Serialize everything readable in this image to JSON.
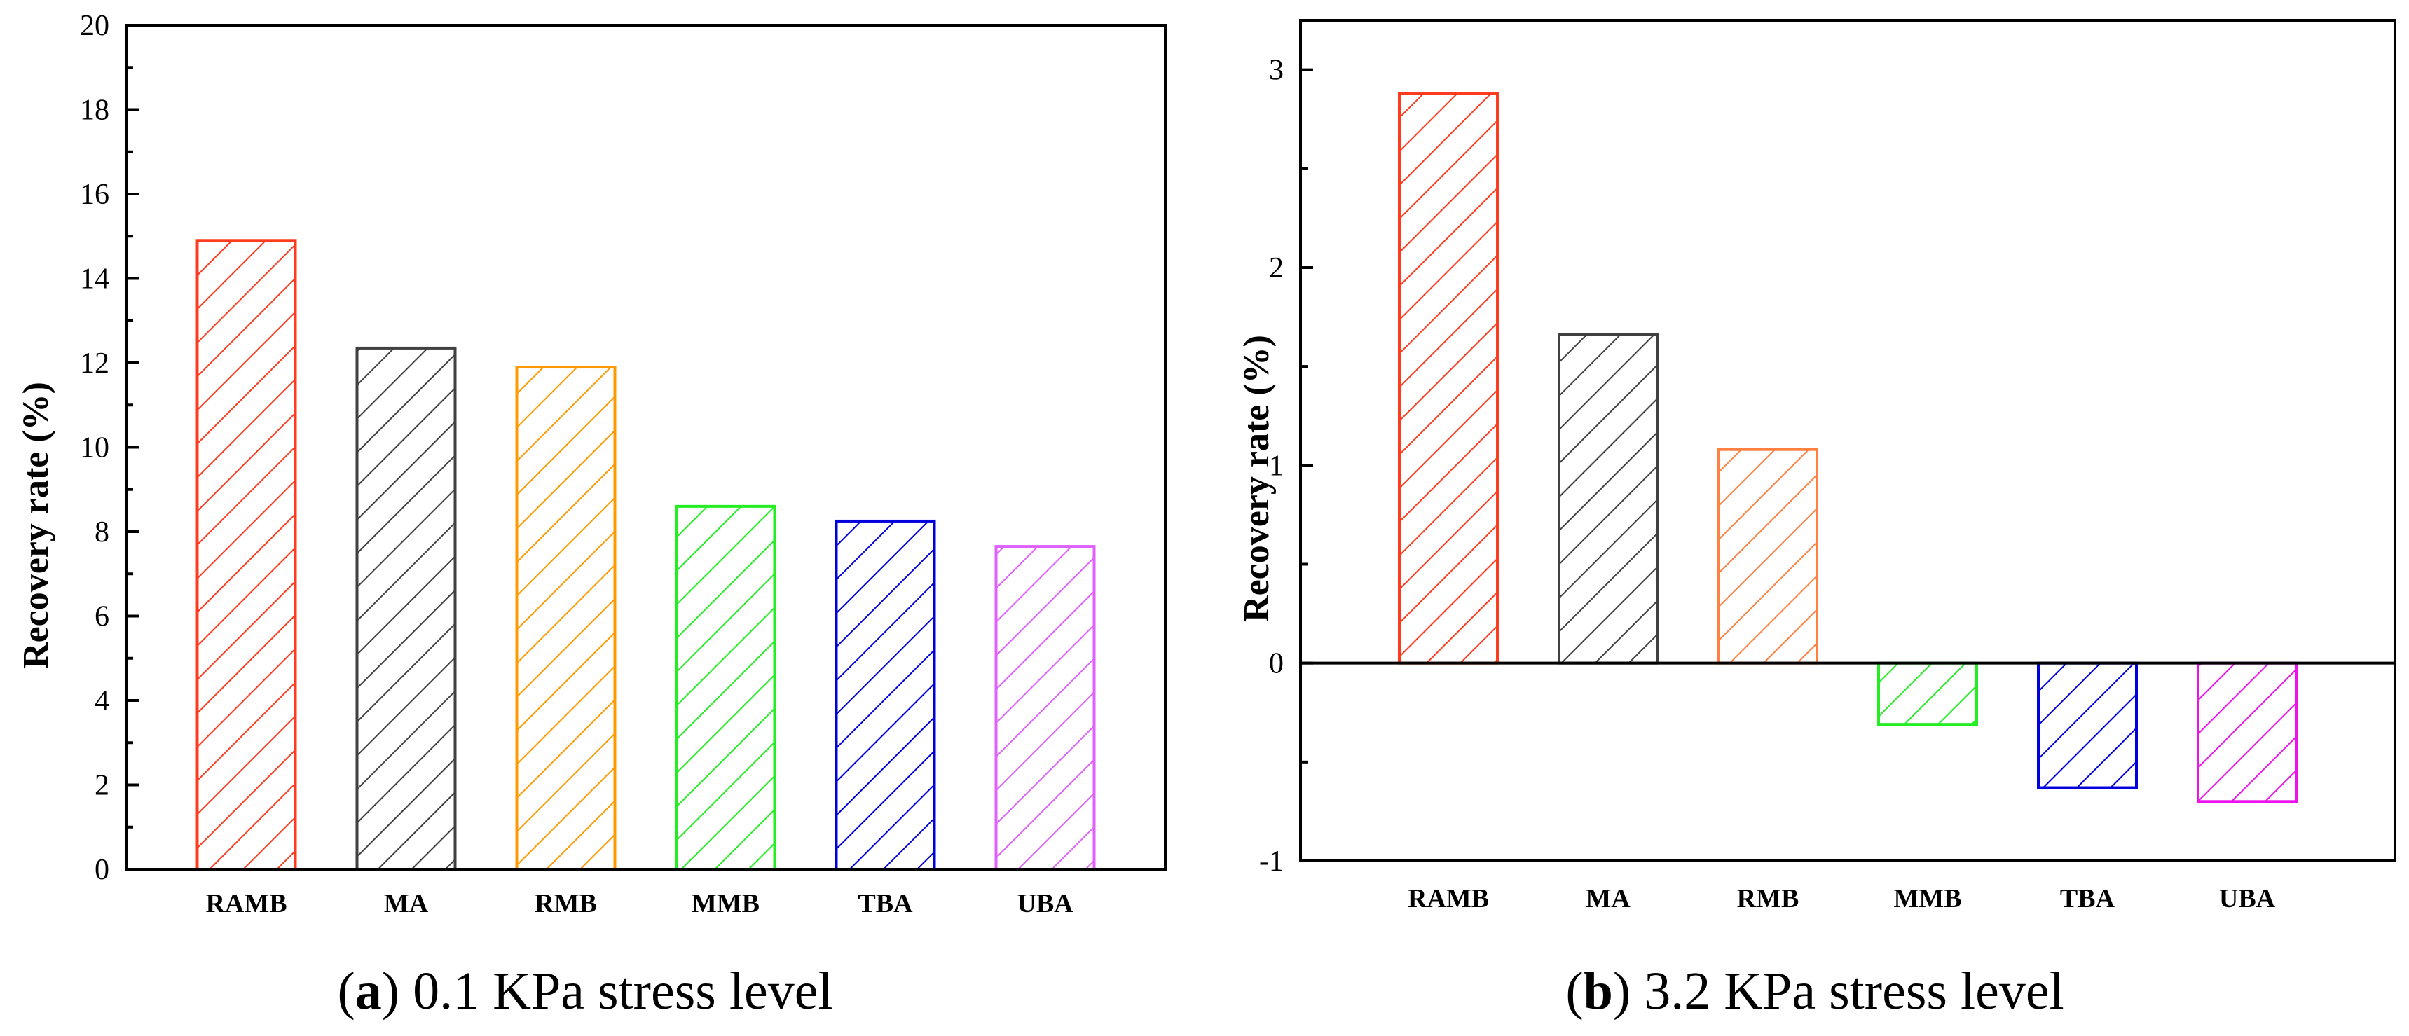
{
  "chart_data": [
    {
      "type": "bar",
      "caption_letter": "a",
      "caption_text": "0.1 KPa stress level",
      "title": "",
      "xlabel": "",
      "ylabel": "Recovery rate (%)",
      "ylim": [
        0,
        20
      ],
      "yticks": [
        0,
        2,
        4,
        6,
        8,
        10,
        12,
        14,
        16,
        18,
        20
      ],
      "categories": [
        "RAMB",
        "MA",
        "RMB",
        "MMB",
        "TBA",
        "UBA"
      ],
      "values": [
        14.9,
        12.35,
        11.9,
        8.6,
        8.25,
        7.65
      ],
      "colors": [
        "#ff3b1f",
        "#404040",
        "#ff9900",
        "#22ee22",
        "#0000dd",
        "#e060ff"
      ],
      "grid": false,
      "legend": "none",
      "fill": "diagonal-hatch"
    },
    {
      "type": "bar",
      "caption_letter": "b",
      "caption_text": "3.2 KPa stress level",
      "title": "",
      "xlabel": "",
      "ylabel": "Recovery rate (%)",
      "ylim": [
        -1,
        3.25
      ],
      "yticks": [
        -1,
        0,
        1,
        2,
        3
      ],
      "categories": [
        "RAMB",
        "MA",
        "RMB",
        "MMB",
        "TBA",
        "UBA"
      ],
      "values": [
        2.88,
        1.66,
        1.08,
        -0.31,
        -0.63,
        -0.7
      ],
      "colors": [
        "#ff3b1f",
        "#404040",
        "#ff8040",
        "#22ee22",
        "#0000dd",
        "#ee11ee"
      ],
      "grid": false,
      "legend": "none",
      "fill": "diagonal-hatch"
    }
  ]
}
